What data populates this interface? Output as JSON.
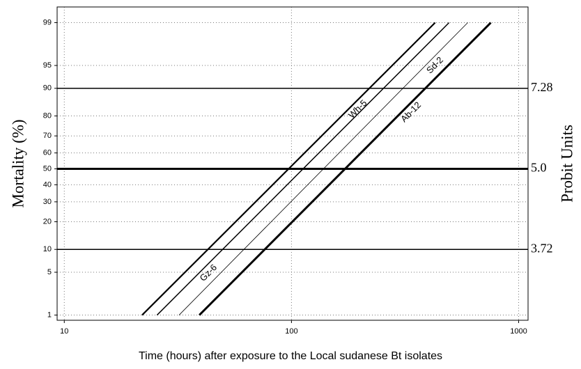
{
  "chart_data": {
    "type": "probit_line",
    "xlabel": "Time (hours) after exposure to the Local sudanese Bt isolates",
    "ylabel": "Mortality (%)",
    "y2label": "Probit Units",
    "xscale": "log",
    "yscale": "probit",
    "grid": true,
    "xlim": [
      9.3,
      1100
    ],
    "xticks": [
      10,
      100,
      1000
    ],
    "ylim": [
      0.8,
      99.5
    ],
    "yticks": [
      1,
      5,
      10,
      20,
      30,
      40,
      50,
      60,
      70,
      80,
      90,
      95,
      99
    ],
    "reference_lines": [
      {
        "value": 90,
        "label": "7.28",
        "width": 1.5
      },
      {
        "value": 50,
        "label": "5.0",
        "width": 3
      },
      {
        "value": 10,
        "label": "3.72",
        "width": 1.5
      }
    ],
    "series": [
      {
        "name": "Wh-5",
        "color": "#000000",
        "width": 2.2,
        "x": [
          22.0,
          429
        ],
        "values": [
          1,
          99
        ]
      },
      {
        "name": "Gz-6",
        "color": "#000000",
        "width": 1.5,
        "x": [
          25.6,
          494
        ],
        "values": [
          1,
          99
        ]
      },
      {
        "name": "Sd-2",
        "color": "#000000",
        "width": 0.8,
        "x": [
          32.0,
          597
        ],
        "values": [
          1,
          99
        ]
      },
      {
        "name": "Ab-12",
        "color": "#000000",
        "width": 3,
        "x": [
          39.3,
          754
        ],
        "values": [
          1,
          99
        ]
      }
    ]
  }
}
